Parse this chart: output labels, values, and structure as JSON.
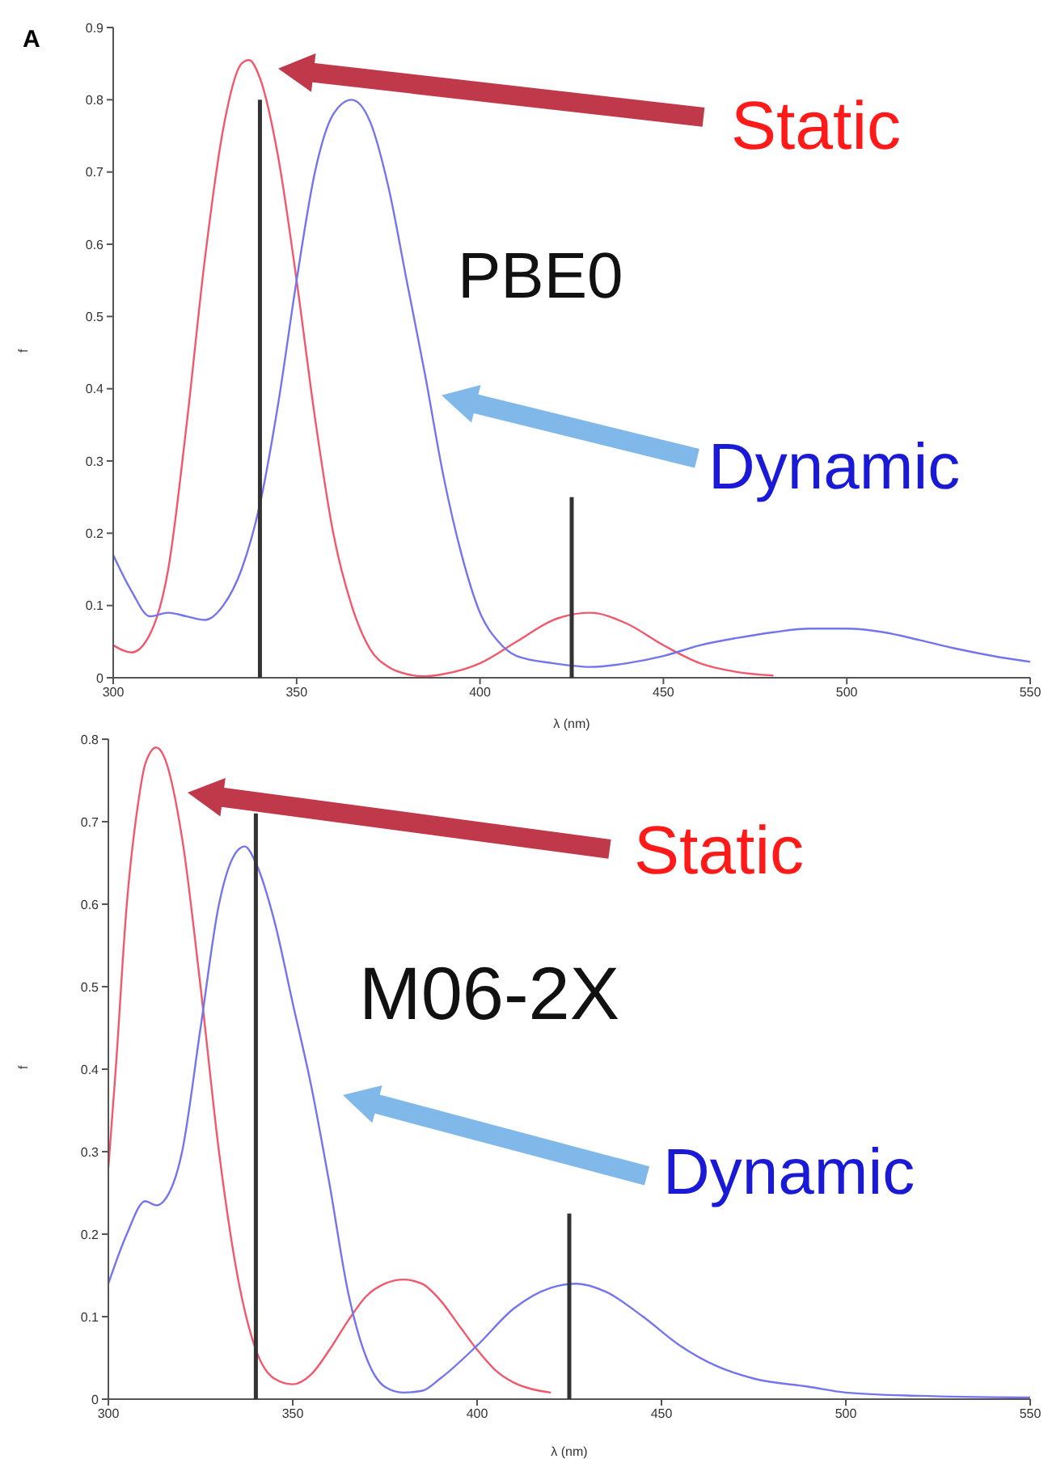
{
  "chart_data": [
    {
      "type": "line",
      "xlabel": "λ (nm)",
      "ylabel": "f",
      "xlim": [
        300,
        550
      ],
      "xticks": [
        300,
        350,
        400,
        450,
        500,
        550
      ],
      "ylim": [
        0,
        0.9
      ],
      "yticks": [
        0,
        0.1,
        0.2,
        0.3,
        0.4,
        0.5,
        0.6,
        0.7,
        0.8,
        0.9
      ],
      "annotations": [
        "A",
        "PBE0",
        "Static",
        "Dynamic"
      ],
      "series": [
        {
          "color": "#f2586c",
          "x": [
            300,
            305,
            310,
            315,
            320,
            325,
            330,
            335,
            337,
            340,
            345,
            350,
            355,
            360,
            365,
            370,
            375,
            380,
            385,
            390,
            400,
            410,
            420,
            430,
            440,
            450,
            460,
            470,
            480
          ],
          "values": [
            0.045,
            0.035,
            0.06,
            0.15,
            0.35,
            0.58,
            0.76,
            0.85,
            0.855,
            0.83,
            0.72,
            0.55,
            0.36,
            0.2,
            0.1,
            0.04,
            0.015,
            0.005,
            0.002,
            0.005,
            0.02,
            0.05,
            0.08,
            0.09,
            0.075,
            0.045,
            0.02,
            0.008,
            0.003
          ]
        },
        {
          "color": "#7474ee",
          "x": [
            300,
            305,
            310,
            315,
            320,
            325,
            330,
            335,
            340,
            345,
            350,
            355,
            360,
            365,
            370,
            375,
            380,
            385,
            390,
            395,
            400,
            405,
            410,
            420,
            430,
            440,
            450,
            460,
            470,
            480,
            490,
            500,
            510,
            520,
            530,
            540,
            550
          ],
          "values": [
            0.17,
            0.12,
            0.085,
            0.09,
            0.085,
            0.08,
            0.1,
            0.15,
            0.24,
            0.38,
            0.55,
            0.7,
            0.78,
            0.8,
            0.77,
            0.68,
            0.55,
            0.42,
            0.28,
            0.17,
            0.09,
            0.05,
            0.03,
            0.02,
            0.015,
            0.02,
            0.03,
            0.045,
            0.055,
            0.063,
            0.068,
            0.068,
            0.063,
            0.052,
            0.04,
            0.03,
            0.022
          ]
        },
        {
          "type": "bar",
          "color": "#333333",
          "x": [
            340,
            425
          ],
          "values": [
            0.8,
            0.25
          ]
        }
      ]
    },
    {
      "type": "line",
      "xlabel": "λ (nm)",
      "ylabel": "f",
      "xlim": [
        300,
        550
      ],
      "xticks": [
        300,
        350,
        400,
        450,
        500,
        550
      ],
      "ylim": [
        0,
        0.8
      ],
      "yticks": [
        0,
        0.1,
        0.2,
        0.3,
        0.4,
        0.5,
        0.6,
        0.7,
        0.8
      ],
      "annotations": [
        "M06-2X",
        "Static",
        "Dynamic"
      ],
      "series": [
        {
          "color": "#f2586c",
          "x": [
            300,
            302,
            305,
            308,
            310,
            313,
            315,
            320,
            325,
            330,
            335,
            340,
            345,
            350,
            355,
            360,
            365,
            370,
            375,
            380,
            385,
            390,
            395,
            400,
            405,
            410,
            415,
            420
          ],
          "values": [
            0.28,
            0.4,
            0.6,
            0.72,
            0.77,
            0.79,
            0.78,
            0.68,
            0.5,
            0.3,
            0.15,
            0.06,
            0.025,
            0.018,
            0.03,
            0.06,
            0.095,
            0.125,
            0.14,
            0.145,
            0.14,
            0.12,
            0.09,
            0.06,
            0.035,
            0.02,
            0.012,
            0.008
          ]
        },
        {
          "color": "#7474ee",
          "x": [
            300,
            305,
            310,
            313,
            315,
            320,
            325,
            330,
            335,
            337,
            340,
            345,
            350,
            355,
            360,
            365,
            370,
            375,
            380,
            385,
            390,
            400,
            410,
            420,
            427,
            435,
            445,
            455,
            465,
            475,
            490,
            500,
            520,
            550
          ],
          "values": [
            0.14,
            0.2,
            0.24,
            0.235,
            0.24,
            0.3,
            0.45,
            0.6,
            0.665,
            0.67,
            0.65,
            0.58,
            0.48,
            0.38,
            0.26,
            0.13,
            0.05,
            0.015,
            0.008,
            0.01,
            0.025,
            0.065,
            0.11,
            0.135,
            0.14,
            0.13,
            0.1,
            0.065,
            0.04,
            0.025,
            0.015,
            0.008,
            0.004,
            0.002
          ]
        },
        {
          "type": "bar",
          "color": "#333333",
          "x": [
            340,
            425
          ],
          "values": [
            0.71,
            0.225
          ]
        }
      ]
    }
  ]
}
